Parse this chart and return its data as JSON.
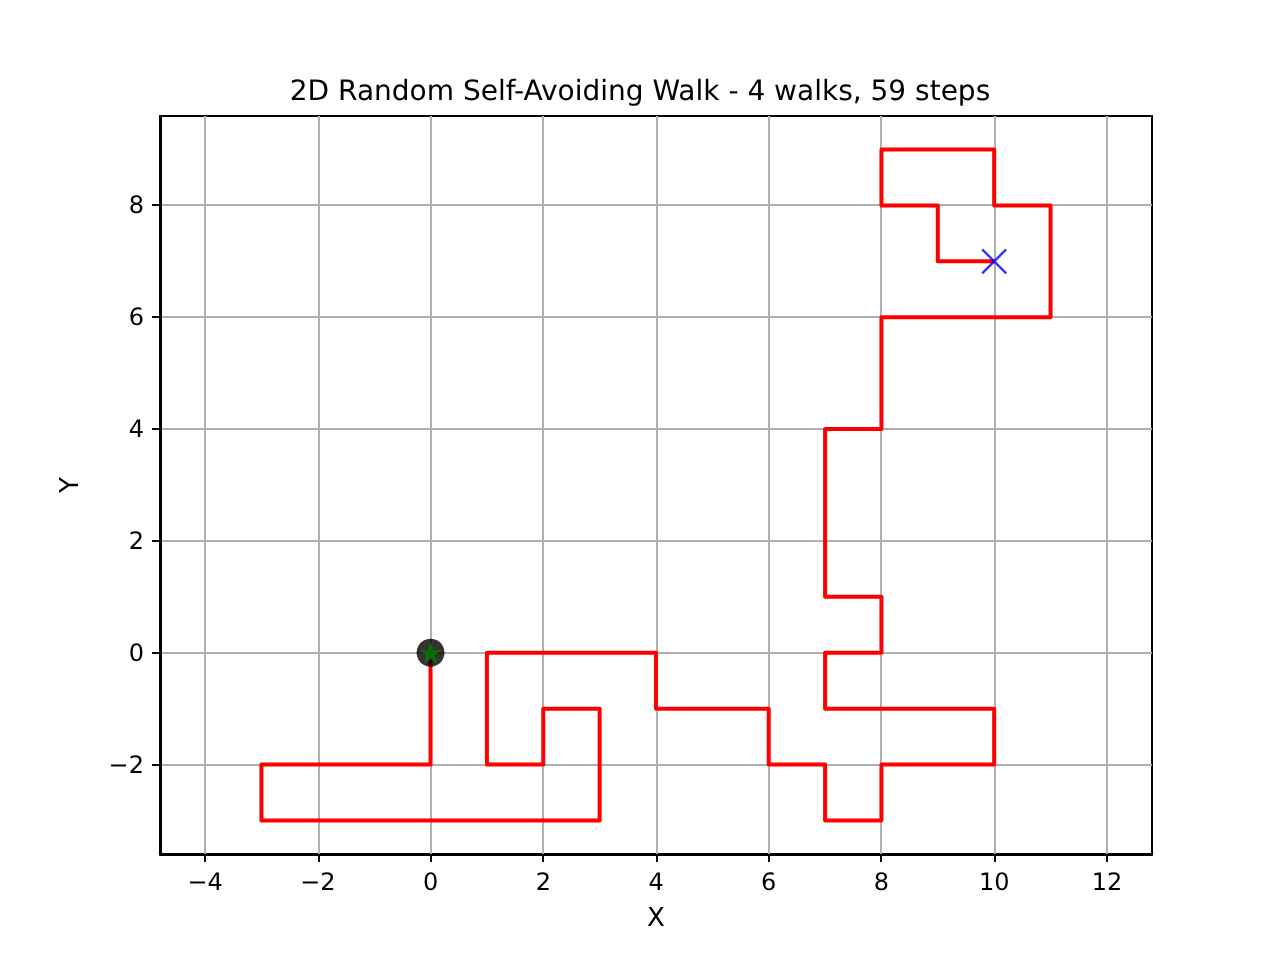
{
  "chart_data": {
    "type": "line",
    "title": "2D Random Self-Avoiding Walk - 4 walks, 59 steps",
    "xlabel": "X",
    "ylabel": "Y",
    "series": [
      {
        "color": "#ff0000",
        "marker": "none",
        "x": [
          0,
          0,
          -3,
          -3,
          3,
          3,
          2,
          2,
          1,
          1,
          4,
          4,
          6,
          6,
          7,
          7,
          8,
          8,
          10,
          10,
          7,
          7,
          8,
          8,
          7,
          7,
          8,
          8,
          11,
          11,
          10,
          10,
          8,
          8,
          9,
          9,
          10
        ],
        "values": [
          0,
          -2,
          -2,
          -3,
          -3,
          -1,
          -1,
          -2,
          -2,
          0,
          0,
          -1,
          -1,
          -2,
          -2,
          -3,
          -3,
          -2,
          -2,
          -1,
          -1,
          0,
          0,
          1,
          1,
          4,
          4,
          6,
          6,
          8,
          8,
          9,
          9,
          8,
          8,
          7,
          7
        ]
      },
      {
        "type": "scatter",
        "color": "#000000",
        "marker": "circle",
        "x": [
          0
        ],
        "values": [
          0
        ]
      },
      {
        "type": "scatter",
        "color": "#008000",
        "marker": "star",
        "x": [
          0
        ],
        "values": [
          0
        ]
      },
      {
        "type": "scatter",
        "color": "#0000ff",
        "marker": "cross",
        "x": [
          10
        ],
        "values": [
          7
        ]
      }
    ],
    "xlim": [
      -4.8,
      12.8
    ],
    "xticks": [
      -4,
      -2,
      0,
      2,
      4,
      6,
      8,
      10,
      12
    ],
    "ylim": [
      -3.6,
      9.6
    ],
    "yticks": [
      -2,
      0,
      2,
      4,
      6,
      8
    ],
    "grid": true
  }
}
